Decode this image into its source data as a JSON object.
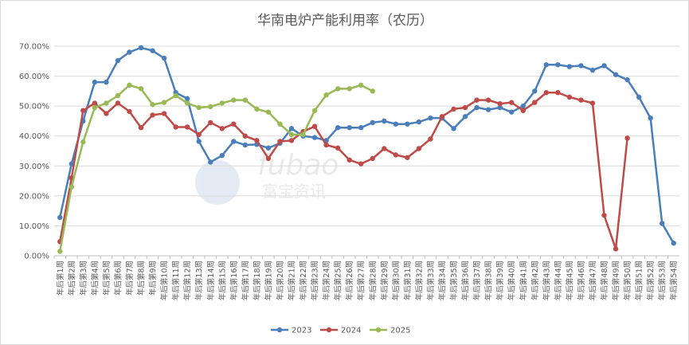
{
  "chart_data": {
    "type": "line",
    "title": "华南电炉产能利用率（农历）",
    "xlabel": "",
    "ylabel": "",
    "ylim": [
      0,
      70
    ],
    "yticks": [
      "0.00%",
      "10.00%",
      "20.00%",
      "30.00%",
      "40.00%",
      "50.00%",
      "60.00%",
      "70.00%"
    ],
    "grid": true,
    "legend_position": "bottom",
    "categories": [
      "年后第1周",
      "年后第2周",
      "年后第3周",
      "年后第4周",
      "年后第5周",
      "年后第6周",
      "年后第7周",
      "年后第8周",
      "年后第9周",
      "年后第10周",
      "年后第11周",
      "年后第12周",
      "年后第13周",
      "年后第14周",
      "年后第15周",
      "年后第16周",
      "年后第17周",
      "年后第18周",
      "年后第19周",
      "年后第20周",
      "年后第21周",
      "年后第22周",
      "年后第23周",
      "年后第24周",
      "年后第25周",
      "年后第26周",
      "年后第27周",
      "年后第28周",
      "年后第29周",
      "年后第30周",
      "年后第31周",
      "年后第32周",
      "年后第33周",
      "年后第34周",
      "年后第35周",
      "年后第36周",
      "年后第37周",
      "年后第38周",
      "年后第39周",
      "年后第40周",
      "年后第41周",
      "年后第42周",
      "年后第43周",
      "年后第44周",
      "年后第45周",
      "年后第46周",
      "年后第47周",
      "年后第48周",
      "年后第49周",
      "年后第50周",
      "年后第51周",
      "年后第52周",
      "年后第53周",
      "年后第54周"
    ],
    "series": [
      {
        "name": "2023",
        "color": "#4a7ebb",
        "values": [
          12.8,
          30.7,
          45.0,
          58.0,
          58.0,
          65.2,
          68.0,
          69.5,
          68.5,
          66.0,
          54.5,
          52.5,
          38.2,
          31.3,
          33.5,
          38.2,
          37.0,
          37.2,
          36.0,
          37.6,
          42.5,
          40.0,
          39.5,
          38.5,
          42.8,
          42.8,
          42.8,
          44.5,
          45.0,
          44.0,
          44.0,
          44.7,
          46.0,
          46.0,
          42.5,
          46.5,
          49.5,
          48.8,
          49.5,
          48.0,
          50.0,
          55.0,
          63.8,
          63.8,
          63.2,
          63.5,
          62.0,
          63.5,
          60.5,
          58.8,
          53.0,
          46.0,
          10.8,
          4.2
        ]
      },
      {
        "name": "2024",
        "color": "#be4b48",
        "values": [
          4.7,
          26.0,
          48.5,
          51.0,
          47.5,
          51.0,
          48.2,
          42.8,
          47.0,
          47.5,
          43.0,
          43.0,
          40.5,
          44.5,
          42.5,
          44.0,
          40.0,
          38.5,
          32.5,
          38.2,
          38.5,
          41.5,
          43.2,
          37.0,
          36.0,
          32.0,
          30.7,
          32.5,
          35.8,
          33.7,
          32.8,
          35.8,
          39.0,
          46.5,
          49.0,
          49.5,
          52.0,
          52.0,
          50.8,
          51.2,
          48.5,
          51.2,
          54.5,
          54.5,
          53.0,
          52.0,
          51.0,
          13.5,
          2.3,
          39.3,
          null,
          null,
          null,
          null
        ]
      },
      {
        "name": "2025",
        "color": "#98b954",
        "values": [
          1.5,
          23.0,
          38.0,
          49.5,
          51.0,
          53.5,
          57.0,
          55.8,
          50.5,
          51.2,
          53.5,
          51.0,
          49.5,
          49.8,
          51.0,
          52.0,
          52.0,
          49.0,
          48.0,
          44.0,
          40.5,
          40.5,
          48.5,
          53.7,
          55.8,
          55.8,
          57.0,
          55.0,
          null,
          null,
          null,
          null,
          null,
          null,
          null,
          null,
          null,
          null,
          null,
          null,
          null,
          null,
          null,
          null,
          null,
          null,
          null,
          null,
          null,
          null,
          null,
          null,
          null,
          null
        ]
      }
    ]
  },
  "watermark": {
    "brand": "fubao",
    "name": "富宝资讯"
  }
}
